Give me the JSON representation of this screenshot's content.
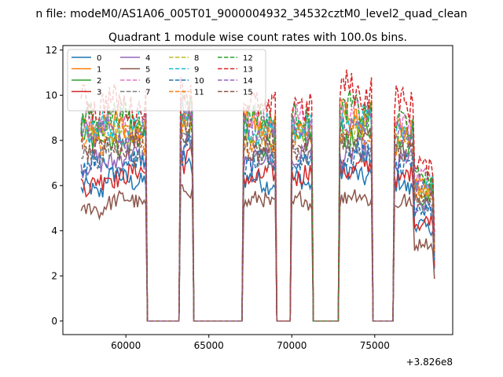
{
  "chart_data": {
    "type": "line",
    "suptitle": "n file: modeM0/AS1A06_005T01_9000004932_34532cztM0_level2_quad_clean",
    "title": "Quadrant 1 module wise count rates with 100.0s bins.",
    "xlabel": "",
    "ylabel": "",
    "x_offset_label": "+3.826e8",
    "xlim": [
      56200,
      79700
    ],
    "ylim": [
      -0.6,
      12.2
    ],
    "xticks": [
      60000,
      65000,
      70000,
      75000
    ],
    "yticks": [
      0,
      2,
      4,
      6,
      8,
      10,
      12
    ],
    "grid": false,
    "legend_position": "top-left",
    "legend_columns": 4,
    "segments": [
      {
        "start": 57300,
        "end": 58700
      },
      {
        "start": 58700,
        "end": 61300
      },
      {
        "start": 61300,
        "end": 63300
      },
      {
        "start": 63300,
        "end": 64100
      },
      {
        "start": 64100,
        "end": 67100
      },
      {
        "start": 67100,
        "end": 69100
      },
      {
        "start": 69100,
        "end": 70000
      },
      {
        "start": 70000,
        "end": 71300
      },
      {
        "start": 71300,
        "end": 72900
      },
      {
        "start": 72900,
        "end": 74900
      },
      {
        "start": 74900,
        "end": 76200
      },
      {
        "start": 76200,
        "end": 77400
      },
      {
        "start": 77400,
        "end": 78600
      }
    ],
    "series": [
      {
        "name": "0",
        "color": "#1f77b4",
        "dash": "solid",
        "levels": [
          5.8,
          6.3,
          0,
          7.0,
          0,
          6.2,
          0,
          6.2,
          0,
          6.5,
          0,
          6.0,
          4.2
        ]
      },
      {
        "name": "1",
        "color": "#ff7f0e",
        "dash": "solid",
        "levels": [
          8.5,
          8.7,
          0,
          9.3,
          0,
          8.7,
          0,
          8.6,
          0,
          9.0,
          0,
          8.4,
          6.0
        ]
      },
      {
        "name": "2",
        "color": "#2ca02c",
        "dash": "solid",
        "levels": [
          8.2,
          8.0,
          0,
          8.5,
          0,
          7.9,
          0,
          8.0,
          0,
          8.2,
          0,
          7.8,
          5.6
        ]
      },
      {
        "name": "3",
        "color": "#d62728",
        "dash": "solid",
        "levels": [
          6.1,
          6.5,
          0,
          7.2,
          0,
          6.4,
          0,
          6.5,
          0,
          6.8,
          0,
          6.4,
          4.4
        ]
      },
      {
        "name": "4",
        "color": "#9467bd",
        "dash": "solid",
        "levels": [
          7.0,
          7.2,
          0,
          7.8,
          0,
          7.1,
          0,
          7.2,
          0,
          7.4,
          0,
          7.1,
          5.0
        ]
      },
      {
        "name": "5",
        "color": "#8c564b",
        "dash": "solid",
        "levels": [
          4.9,
          5.3,
          0,
          5.8,
          0,
          5.3,
          0,
          5.3,
          0,
          5.5,
          0,
          5.2,
          3.4
        ]
      },
      {
        "name": "6",
        "color": "#e377c2",
        "dash": "dashed",
        "levels": [
          8.8,
          8.9,
          0,
          9.5,
          0,
          8.9,
          0,
          8.9,
          0,
          9.2,
          0,
          8.7,
          6.3
        ]
      },
      {
        "name": "7",
        "color": "#7f7f7f",
        "dash": "dashed",
        "levels": [
          7.4,
          7.5,
          0,
          8.0,
          0,
          7.4,
          0,
          7.5,
          0,
          7.7,
          0,
          7.4,
          5.2
        ]
      },
      {
        "name": "8",
        "color": "#bcbd22",
        "dash": "dashed",
        "levels": [
          8.4,
          8.4,
          0,
          9.0,
          0,
          8.3,
          0,
          8.4,
          0,
          8.7,
          0,
          8.2,
          5.9
        ]
      },
      {
        "name": "9",
        "color": "#17becf",
        "dash": "dashed",
        "levels": [
          8.6,
          8.6,
          0,
          9.2,
          0,
          8.5,
          0,
          8.6,
          0,
          8.9,
          0,
          8.4,
          6.1
        ]
      },
      {
        "name": "10",
        "color": "#1f77b4",
        "dash": "dashed",
        "levels": [
          7.1,
          7.0,
          0,
          7.6,
          0,
          7.0,
          0,
          7.1,
          0,
          7.3,
          0,
          7.0,
          4.9
        ]
      },
      {
        "name": "11",
        "color": "#ff7f0e",
        "dash": "dashed",
        "levels": [
          8.0,
          8.1,
          0,
          8.7,
          0,
          8.0,
          0,
          8.1,
          0,
          8.4,
          0,
          7.9,
          5.7
        ]
      },
      {
        "name": "12",
        "color": "#2ca02c",
        "dash": "dashed",
        "levels": [
          8.9,
          9.0,
          0,
          9.6,
          0,
          9.0,
          0,
          9.0,
          0,
          9.3,
          0,
          8.8,
          6.4
        ]
      },
      {
        "name": "13",
        "color": "#d62728",
        "dash": "dashed",
        "levels": [
          9.6,
          9.6,
          0,
          10.2,
          0,
          9.5,
          0,
          9.6,
          0,
          10.2,
          0,
          9.7,
          6.9
        ]
      },
      {
        "name": "14",
        "color": "#9467bd",
        "dash": "dashed",
        "levels": [
          8.5,
          8.4,
          0,
          9.0,
          0,
          8.3,
          0,
          8.4,
          0,
          8.7,
          0,
          8.2,
          5.9
        ]
      },
      {
        "name": "15",
        "color": "#8c564b",
        "dash": "dashed",
        "levels": [
          7.8,
          7.8,
          0,
          8.4,
          0,
          7.7,
          0,
          7.8,
          0,
          8.0,
          0,
          7.6,
          5.5
        ]
      }
    ]
  }
}
